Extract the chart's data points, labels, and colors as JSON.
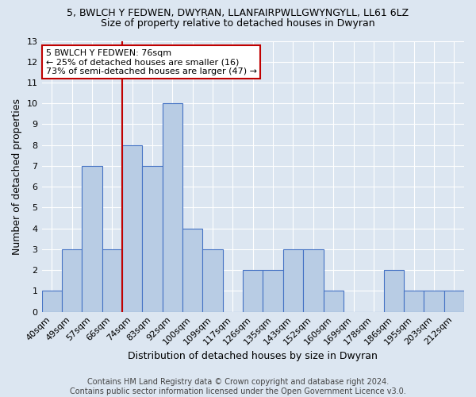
{
  "title": "5, BWLCH Y FEDWEN, DWYRAN, LLANFAIRPWLLGWYNGYLL, LL61 6LZ",
  "subtitle": "Size of property relative to detached houses in Dwyran",
  "xlabel": "Distribution of detached houses by size in Dwyran",
  "ylabel": "Number of detached properties",
  "categories": [
    "40sqm",
    "49sqm",
    "57sqm",
    "66sqm",
    "74sqm",
    "83sqm",
    "92sqm",
    "100sqm",
    "109sqm",
    "117sqm",
    "126sqm",
    "135sqm",
    "143sqm",
    "152sqm",
    "160sqm",
    "169sqm",
    "178sqm",
    "186sqm",
    "195sqm",
    "203sqm",
    "212sqm"
  ],
  "values": [
    1,
    3,
    7,
    3,
    8,
    7,
    10,
    4,
    3,
    0,
    2,
    2,
    3,
    3,
    1,
    0,
    0,
    2,
    1,
    1,
    1
  ],
  "bar_color": "#b8cce4",
  "bar_edge_color": "#4472c4",
  "background_color": "#dce6f1",
  "ylim": [
    0,
    13
  ],
  "yticks": [
    0,
    1,
    2,
    3,
    4,
    5,
    6,
    7,
    8,
    9,
    10,
    11,
    12,
    13
  ],
  "vline_index": 4,
  "vline_color": "#c00000",
  "annotation_text": "5 BWLCH Y FEDWEN: 76sqm\n← 25% of detached houses are smaller (16)\n73% of semi-detached houses are larger (47) →",
  "annotation_box_color": "#ffffff",
  "annotation_box_edge": "#c00000",
  "footer": "Contains HM Land Registry data © Crown copyright and database right 2024.\nContains public sector information licensed under the Open Government Licence v3.0.",
  "grid_color": "#ffffff",
  "title_fontsize": 9,
  "subtitle_fontsize": 9,
  "axis_label_fontsize": 9,
  "tick_fontsize": 8,
  "footer_fontsize": 7,
  "annotation_fontsize": 8
}
